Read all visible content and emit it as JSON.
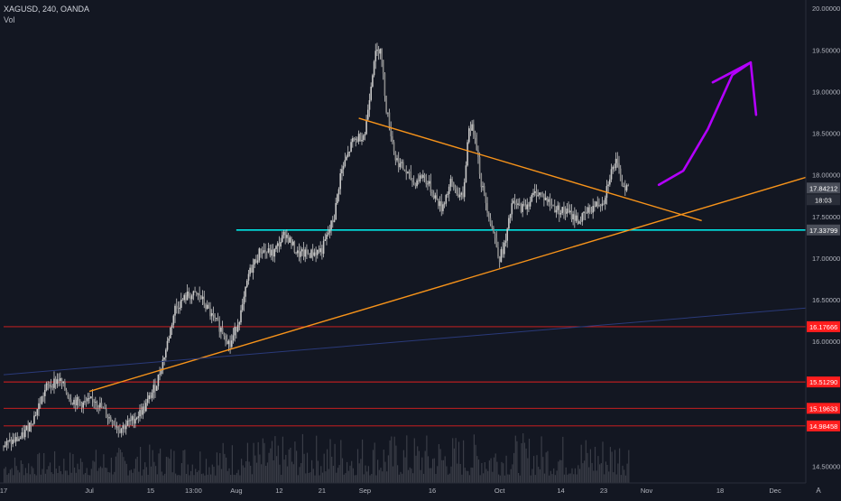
{
  "header": {
    "symbol": "XAGUSD, 240, OANDA",
    "volume_label": "Vol"
  },
  "colors": {
    "background": "#131722",
    "candle": "#c8c8c8",
    "trendline": "#f7931a",
    "support_cyan": "#00e5e5",
    "level_red": "#e02020",
    "arrow": "#b400ff",
    "volume": "#3a3d47",
    "axis_text": "#b2b5be",
    "label_dark": "#4a4e59",
    "label_red": "#ff1e1e"
  },
  "price_badges": {
    "last_price": "17.84212",
    "countdown": "18:03"
  },
  "chart_data": {
    "type": "candlestick",
    "y_axis": {
      "min": 14.3,
      "max": 20.1,
      "scale": "linear",
      "side": "right",
      "ticks": [
        "20.00000",
        "19.50000",
        "19.00000",
        "18.50000",
        "18.00000",
        "17.50000",
        "17.00000",
        "16.50000",
        "16.00000",
        "15.50000",
        "15.00000",
        "14.50000"
      ]
    },
    "x_axis": {
      "labels": [
        "17",
        "Jul",
        "15",
        "13:00",
        "Aug",
        "12",
        "21",
        "Sep",
        "16",
        "Oct",
        "14",
        "23",
        "Nov",
        "18",
        "Dec"
      ],
      "label_index": [
        0,
        28,
        48,
        62,
        76,
        90,
        104,
        118,
        140,
        162,
        182,
        196,
        210,
        234,
        252
      ],
      "max_index": 262
    },
    "price_path": [
      [
        0,
        14.75
      ],
      [
        6,
        14.85
      ],
      [
        10,
        15.1
      ],
      [
        14,
        15.45
      ],
      [
        18,
        15.55
      ],
      [
        22,
        15.3
      ],
      [
        26,
        15.25
      ],
      [
        30,
        15.3
      ],
      [
        34,
        15.1
      ],
      [
        38,
        14.95
      ],
      [
        42,
        15.05
      ],
      [
        46,
        15.2
      ],
      [
        50,
        15.5
      ],
      [
        53,
        15.9
      ],
      [
        56,
        16.4
      ],
      [
        60,
        16.55
      ],
      [
        64,
        16.55
      ],
      [
        68,
        16.3
      ],
      [
        72,
        16.1
      ],
      [
        74,
        15.95
      ],
      [
        78,
        16.4
      ],
      [
        80,
        16.8
      ],
      [
        84,
        17.1
      ],
      [
        88,
        17.05
      ],
      [
        92,
        17.3
      ],
      [
        96,
        17.05
      ],
      [
        100,
        17.05
      ],
      [
        104,
        17.1
      ],
      [
        108,
        17.5
      ],
      [
        110,
        18.0
      ],
      [
        114,
        18.4
      ],
      [
        116,
        18.45
      ],
      [
        118,
        18.5
      ],
      [
        121,
        19.4
      ],
      [
        123,
        19.55
      ],
      [
        125,
        18.8
      ],
      [
        128,
        18.2
      ],
      [
        131,
        18.05
      ],
      [
        134,
        17.9
      ],
      [
        137,
        18.0
      ],
      [
        140,
        17.8
      ],
      [
        143,
        17.6
      ],
      [
        146,
        17.9
      ],
      [
        150,
        17.7
      ],
      [
        152,
        18.6
      ],
      [
        154,
        18.5
      ],
      [
        156,
        17.9
      ],
      [
        158,
        17.6
      ],
      [
        160,
        17.3
      ],
      [
        162,
        17.0
      ],
      [
        164,
        17.2
      ],
      [
        166,
        17.65
      ],
      [
        170,
        17.6
      ],
      [
        174,
        17.8
      ],
      [
        176,
        17.75
      ],
      [
        180,
        17.6
      ],
      [
        184,
        17.55
      ],
      [
        188,
        17.45
      ],
      [
        192,
        17.6
      ],
      [
        196,
        17.7
      ],
      [
        198,
        18.0
      ],
      [
        200,
        18.15
      ],
      [
        202,
        17.9
      ],
      [
        204,
        17.84
      ]
    ],
    "volume_range": [
      14.3,
      14.9
    ],
    "horizontal_levels": [
      {
        "value": 17.33799,
        "label": "17.33799",
        "style": "cyan",
        "from_index": 76
      },
      {
        "value": 16.17666,
        "label": "16.17666",
        "style": "red",
        "from_index": 0
      },
      {
        "value": 15.5129,
        "label": "15.51290",
        "style": "red",
        "from_index": 0
      },
      {
        "value": 15.19633,
        "label": "15.19633",
        "style": "red",
        "from_index": 0
      },
      {
        "value": 14.98458,
        "label": "14.98458",
        "style": "red",
        "from_index": 0
      }
    ],
    "trendlines": [
      {
        "from": [
          28,
          15.4
        ],
        "to": [
          262,
          17.97
        ],
        "color": "trendline"
      },
      {
        "from": [
          116,
          18.68
        ],
        "to": [
          228,
          17.45
        ],
        "color": "trendline"
      },
      {
        "from": [
          0,
          15.6
        ],
        "to": [
          262,
          16.4
        ],
        "color": "faint_blue"
      }
    ],
    "arrow_path": [
      [
        214,
        17.88
      ],
      [
        222,
        18.05
      ],
      [
        230,
        18.55
      ],
      [
        238,
        19.2
      ],
      [
        244,
        19.35
      ]
    ]
  }
}
